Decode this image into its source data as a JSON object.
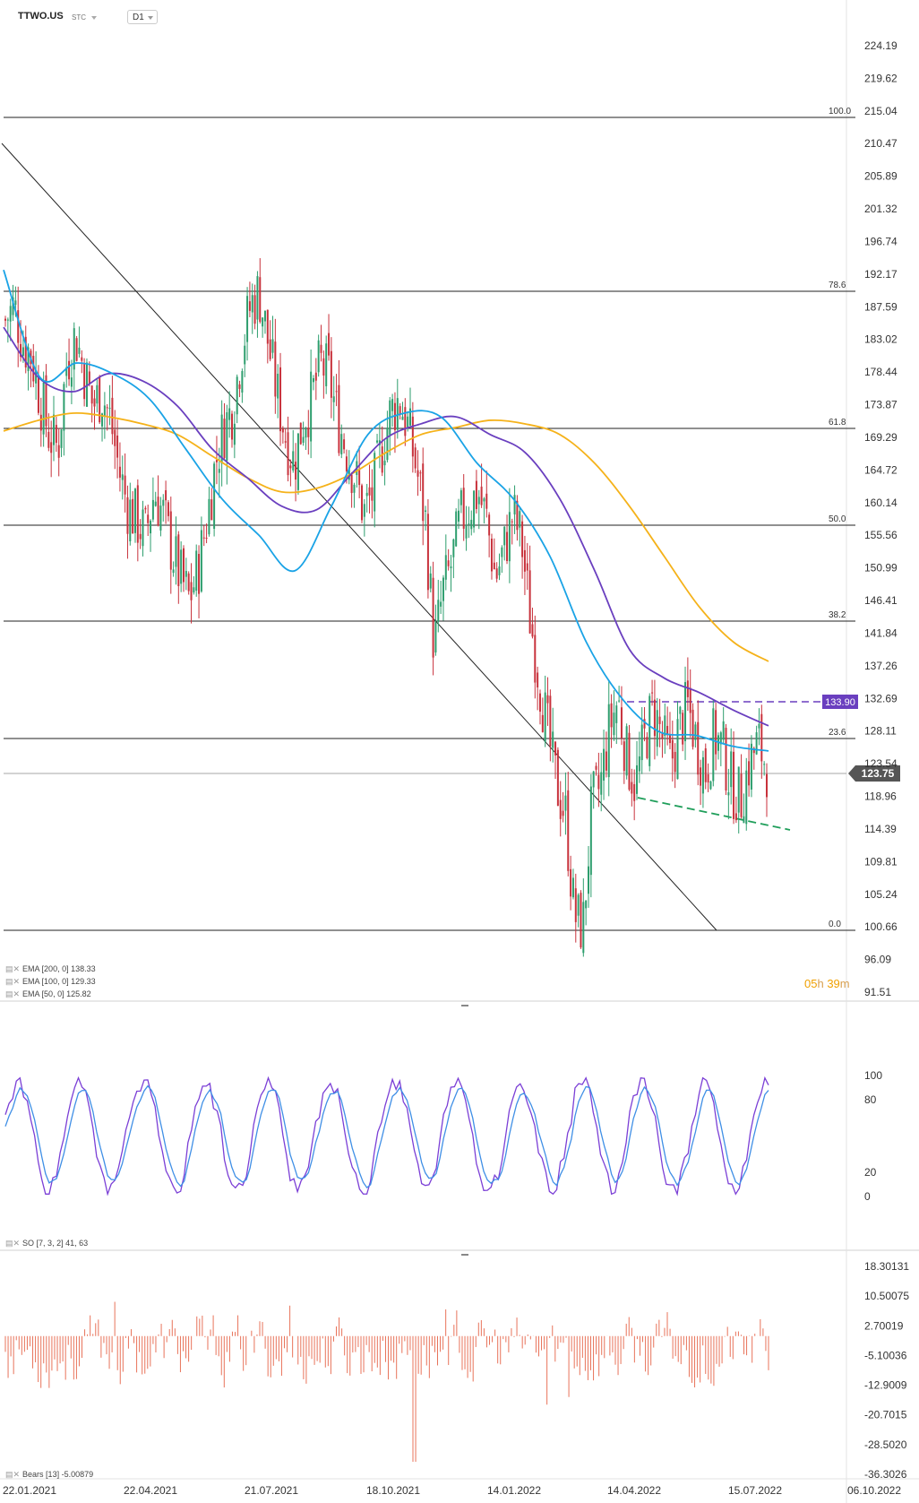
{
  "header": {
    "symbol": "TTWO.US",
    "exchange": "STC",
    "timeframe": "D1"
  },
  "countdown": {
    "hours": "05",
    "h": "h",
    "minutes": "39",
    "m": "m"
  },
  "price_axis": [
    "224.19",
    "219.62",
    "215.04",
    "210.47",
    "205.89",
    "201.32",
    "196.74",
    "192.17",
    "187.59",
    "183.02",
    "178.44",
    "173.87",
    "169.29",
    "164.72",
    "160.14",
    "155.56",
    "150.99",
    "146.41",
    "141.84",
    "137.26",
    "132.69",
    "128.11",
    "123.54",
    "118.96",
    "114.39",
    "109.81",
    "105.24",
    "100.66",
    "96.09",
    "91.51"
  ],
  "stoch_axis": [
    "100",
    "80",
    "20",
    "0"
  ],
  "bears_axis": [
    "18.30131",
    "10.50075",
    "2.70019",
    "-5.10036",
    "-12.9009",
    "-20.7015",
    "-28.5020",
    "-36.3026"
  ],
  "date_axis": [
    "22.01.2021",
    "22.04.2021",
    "21.07.2021",
    "18.10.2021",
    "14.01.2022",
    "14.04.2022",
    "15.07.2022",
    "06.10.2022"
  ],
  "fib_levels": [
    {
      "label": "100.0",
      "price": 215.04
    },
    {
      "label": "78.6",
      "price": 190.5
    },
    {
      "label": "61.8",
      "price": 171.9
    },
    {
      "label": "50.0",
      "price": 158.9
    },
    {
      "label": "38.2",
      "price": 145.7
    },
    {
      "label": "23.6",
      "price": 129.5
    },
    {
      "label": "0.0",
      "price": 100.66
    }
  ],
  "price_tags": {
    "resistance": "133.90",
    "current": "123.75"
  },
  "colors": {
    "ema200": "#f5b21a",
    "ema100": "#6a3fbf",
    "ema50": "#1aa3e6",
    "up": "#2e9e6e",
    "down": "#c8323c",
    "bears": "#e8735a",
    "stoch_k": "#7b3fd6",
    "stoch_d": "#3f8fe6",
    "support": "#1f9e5a",
    "resist": "#6a3fbf"
  },
  "legends": {
    "ema200": "EMA [200, 0] 138.33",
    "ema100": "EMA [100, 0] 129.33",
    "ema50": "EMA [50, 0] 125.82",
    "stoch": "SO [7, 3, 2] 41, 63",
    "bears": "Bears [13] -5.00879"
  },
  "chart_data": [
    {
      "type": "line",
      "series_kind": "candlestick",
      "x_start": "22.01.2021",
      "x_end": "06.10.2022",
      "ylim": [
        91.51,
        224.19
      ],
      "series": [
        {
          "name": "EMA [200, 0]",
          "values": [
            170.5,
            172,
            173,
            172.5,
            171.5,
            170,
            167,
            164,
            162,
            162.5,
            164.5,
            167.5,
            170,
            171,
            172,
            171.5,
            170,
            166,
            160,
            153,
            146,
            141,
            138.33
          ]
        },
        {
          "name": "EMA [100, 0]",
          "values": [
            185,
            178,
            176,
            178.5,
            177.5,
            174,
            168,
            164,
            160,
            159.5,
            164.5,
            169.5,
            171.5,
            172.5,
            170,
            167.5,
            161,
            151,
            140,
            136,
            134,
            131.5,
            129.33
          ]
        },
        {
          "name": "EMA [50, 0]",
          "values": [
            193,
            178,
            180,
            178.5,
            175,
            168,
            161,
            156,
            151,
            160,
            170,
            173,
            172.5,
            166,
            161,
            153,
            141,
            133,
            128.5,
            128,
            126.5,
            125.82
          ]
        }
      ],
      "closes": [
        186,
        188,
        183,
        181,
        175,
        170,
        168,
        180,
        184,
        179,
        174,
        176,
        172,
        165,
        160,
        158,
        156,
        162,
        159,
        154,
        150,
        147,
        151,
        158,
        166,
        171,
        174,
        182,
        188,
        190,
        183,
        176,
        170,
        166,
        172,
        175,
        180,
        178,
        172,
        168,
        164,
        159,
        162,
        168,
        173,
        175,
        171,
        165,
        158,
        140,
        148,
        152,
        158,
        160,
        162,
        158,
        150,
        154,
        159,
        155,
        144,
        136,
        128,
        121,
        117,
        103,
        101,
        118,
        121,
        129,
        133,
        125,
        121,
        127,
        132,
        128,
        124,
        129,
        132,
        127,
        123,
        128,
        126,
        121,
        119,
        124,
        127,
        123.75
      ],
      "price_min": 100.66,
      "price_max": 196.74,
      "current": 123.75
    },
    {
      "type": "line",
      "series": [
        {
          "name": "SO [7, 3, 2]",
          "values": [
            41,
            63
          ]
        }
      ],
      "ylim": [
        0,
        100
      ]
    },
    {
      "type": "bar",
      "series": [
        {
          "name": "Bears [13]",
          "values": [
            -5.00879
          ]
        }
      ],
      "ylim": [
        -36.3026,
        18.30131
      ]
    }
  ]
}
